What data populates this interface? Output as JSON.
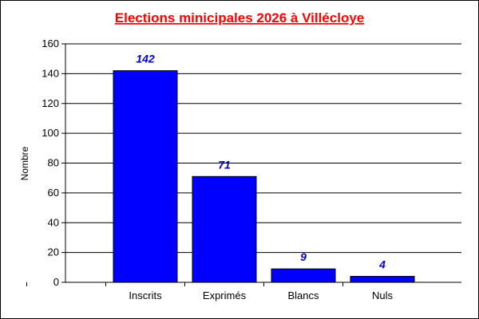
{
  "chart_data": {
    "type": "bar",
    "title": "Elections minicipales 2026 à Villécloye",
    "ylabel": "Nombre",
    "xlabel": "",
    "categories": [
      "Inscrits",
      "Exprimés",
      "Blancs",
      "Nuls"
    ],
    "values": [
      142,
      71,
      9,
      4
    ],
    "ylim": [
      0,
      160
    ],
    "yticks": [
      0,
      20,
      40,
      60,
      80,
      100,
      120,
      140,
      160
    ],
    "grid": true,
    "legend": "none",
    "data_labels": true
  },
  "colors": {
    "bar": "#0000ff",
    "title": "#ff0000",
    "data_label": "#0000cc",
    "grid": "#000000"
  }
}
